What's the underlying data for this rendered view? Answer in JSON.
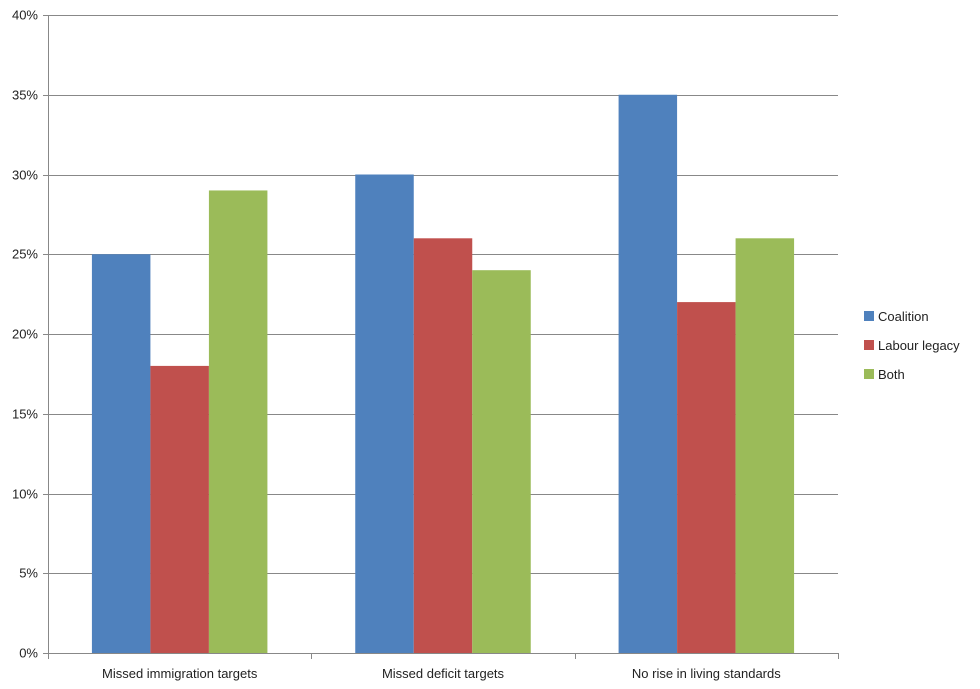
{
  "chart_data": {
    "type": "bar",
    "categories": [
      "Missed immigration targets",
      "Missed deficit targets",
      "No rise in living standards"
    ],
    "series": [
      {
        "name": "Coalition",
        "values": [
          25,
          30,
          35
        ],
        "color": "#4F81BD"
      },
      {
        "name": "Labour legacy",
        "values": [
          18,
          26,
          22
        ],
        "color": "#C0504D"
      },
      {
        "name": "Both",
        "values": [
          29,
          24,
          26
        ],
        "color": "#9BBB59"
      }
    ],
    "ylim": [
      0,
      40
    ],
    "yticks": [
      0,
      5,
      10,
      15,
      20,
      25,
      30,
      35,
      40
    ],
    "ytick_suffix": "%",
    "grid": true,
    "legend_position": "right",
    "title": "",
    "xlabel": "",
    "ylabel": ""
  }
}
